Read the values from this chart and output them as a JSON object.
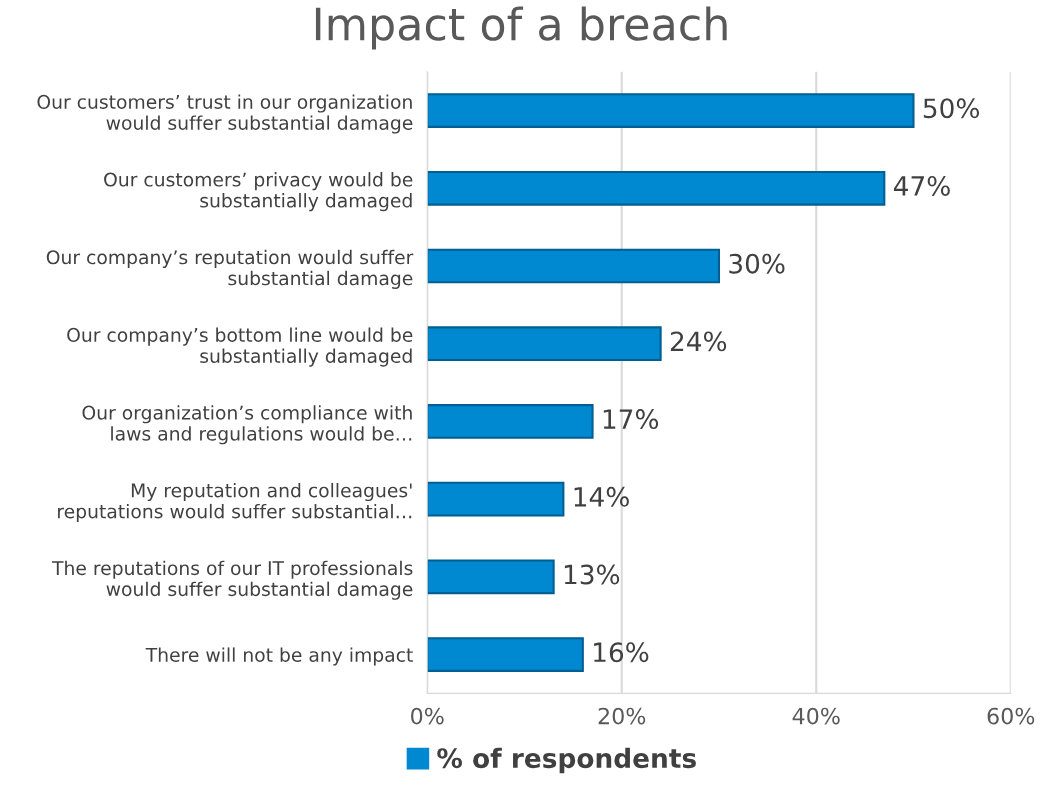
{
  "chart_data": {
    "type": "bar",
    "orientation": "horizontal",
    "title": "Impact of a breach",
    "categories": [
      "Our customers’ trust in our organization\nwould suffer substantial damage",
      "Our customers’ privacy would be\nsubstantially damaged",
      "Our company’s reputation would suffer\nsubstantial damage",
      "Our company’s bottom line would be\nsubstantially damaged",
      "Our organization’s compliance with\nlaws and regulations would be…",
      "My reputation and colleagues'\nreputations would suffer substantial…",
      "The reputations of our IT professionals\nwould suffer substantial damage",
      "There will not be any impact"
    ],
    "series": [
      {
        "name": "% of respondents",
        "color": "#0088d1",
        "values": [
          50,
          47,
          30,
          24,
          17,
          14,
          13,
          16
        ],
        "value_labels": [
          "50%",
          "47%",
          "30%",
          "24%",
          "17%",
          "14%",
          "13%",
          "16%"
        ]
      }
    ],
    "xlim": [
      0,
      60
    ],
    "xticks": [
      {
        "value": 0,
        "label": "0%"
      },
      {
        "value": 20,
        "label": "20%"
      },
      {
        "value": 40,
        "label": "40%"
      },
      {
        "value": 60,
        "label": "60%"
      }
    ],
    "grid": "x",
    "legend": "bottom"
  }
}
